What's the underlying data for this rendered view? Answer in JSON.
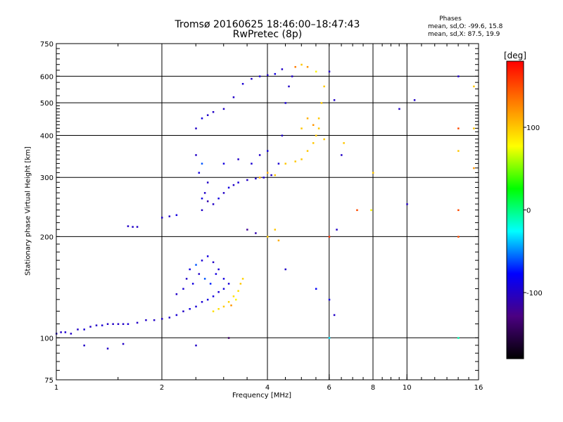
{
  "chart_data": {
    "type": "scatter",
    "title": "Tromsø 20160625 18:46:00–18:47:43",
    "subtitle": "RwPretec (8p)",
    "xlabel": "Frequency [MHz]",
    "ylabel": "Stationary phase Virtual Height [km]",
    "xscale": "log",
    "yscale": "log",
    "xlim": [
      1,
      16
    ],
    "ylim": [
      75,
      750
    ],
    "xticks": [
      1,
      2,
      4,
      6,
      8,
      10,
      16
    ],
    "yticks": [
      75,
      100,
      200,
      300,
      400,
      500,
      600,
      750
    ],
    "grid": true,
    "phase_stats": {
      "title": "Phases",
      "o_line": "mean, sd,O: -99.6, 15.8",
      "x_line": "mean, sd,X:  87.5, 19.9"
    },
    "colorbar": {
      "label": "[deg]",
      "ticks": [
        100,
        0,
        -100
      ],
      "range": [
        -180,
        180
      ],
      "colors": [
        "#000000",
        "#4b0082",
        "#0000ff",
        "#00ffff",
        "#00ff00",
        "#ffff00",
        "#ff8000",
        "#ff0000"
      ]
    },
    "series": [
      {
        "points": [
          [
            1.0,
            103,
            -100
          ],
          [
            1.03,
            104,
            -100
          ],
          [
            1.06,
            104,
            -95
          ],
          [
            1.1,
            103,
            -100
          ],
          [
            1.15,
            106,
            -100
          ],
          [
            1.2,
            106,
            -95
          ],
          [
            1.25,
            108,
            -100
          ],
          [
            1.3,
            109,
            -100
          ],
          [
            1.35,
            109,
            -95
          ],
          [
            1.4,
            110,
            -100
          ],
          [
            1.45,
            110,
            -100
          ],
          [
            1.5,
            110,
            -100
          ],
          [
            1.55,
            110,
            -100
          ],
          [
            1.6,
            110,
            -95
          ],
          [
            1.7,
            111,
            -100
          ],
          [
            1.8,
            113,
            -100
          ],
          [
            1.9,
            113,
            -100
          ],
          [
            2.0,
            114,
            -100
          ],
          [
            2.1,
            115,
            -100
          ],
          [
            2.2,
            117,
            -95
          ],
          [
            2.3,
            120,
            -100
          ],
          [
            2.4,
            122,
            -90
          ],
          [
            2.5,
            124,
            -95
          ],
          [
            2.6,
            128,
            -95
          ],
          [
            2.7,
            130,
            -90
          ],
          [
            2.8,
            133,
            -90
          ],
          [
            2.9,
            137,
            -95
          ],
          [
            3.0,
            140,
            -90
          ],
          [
            3.1,
            145,
            -95
          ],
          [
            2.2,
            135,
            -100
          ],
          [
            2.3,
            140,
            -95
          ],
          [
            2.35,
            150,
            -100
          ],
          [
            2.4,
            160,
            -90
          ],
          [
            2.5,
            165,
            -60
          ],
          [
            2.55,
            155,
            -100
          ],
          [
            2.6,
            170,
            -95
          ],
          [
            2.7,
            175,
            -90
          ],
          [
            2.8,
            168,
            -100
          ],
          [
            2.9,
            160,
            -95
          ],
          [
            3.0,
            150,
            -90
          ],
          [
            2.45,
            145,
            -90
          ],
          [
            2.65,
            150,
            -60
          ],
          [
            2.75,
            145,
            -70
          ],
          [
            2.85,
            155,
            -90
          ],
          [
            1.2,
            95,
            -100
          ],
          [
            1.4,
            93,
            -100
          ],
          [
            1.55,
            96,
            -100
          ],
          [
            2.5,
            95,
            -100
          ],
          [
            2.8,
            120,
            90
          ],
          [
            2.9,
            122,
            90
          ],
          [
            3.0,
            124,
            100
          ],
          [
            3.1,
            128,
            95
          ],
          [
            3.2,
            133,
            90
          ],
          [
            3.3,
            138,
            90
          ],
          [
            3.35,
            145,
            100
          ],
          [
            3.4,
            150,
            95
          ],
          [
            3.15,
            125,
            120
          ],
          [
            3.25,
            130,
            80
          ],
          [
            1.6,
            215,
            -100
          ],
          [
            1.65,
            214,
            -100
          ],
          [
            1.7,
            214,
            -100
          ],
          [
            2.0,
            228,
            -100
          ],
          [
            2.1,
            230,
            -100
          ],
          [
            2.2,
            232,
            -90
          ],
          [
            2.6,
            240,
            -100
          ],
          [
            2.6,
            260,
            -90
          ],
          [
            2.65,
            270,
            -100
          ],
          [
            2.7,
            255,
            -110
          ],
          [
            2.8,
            250,
            -100
          ],
          [
            2.9,
            260,
            -90
          ],
          [
            3.0,
            270,
            -100
          ],
          [
            3.1,
            280,
            -90
          ],
          [
            3.2,
            285,
            -100
          ],
          [
            3.3,
            290,
            -95
          ],
          [
            3.5,
            295,
            -100
          ],
          [
            3.7,
            298,
            -100
          ],
          [
            3.9,
            300,
            -95
          ],
          [
            4.1,
            305,
            -100
          ],
          [
            4.3,
            330,
            -95
          ],
          [
            4.4,
            400,
            -100
          ],
          [
            4.5,
            500,
            -95
          ],
          [
            4.6,
            560,
            -100
          ],
          [
            4.7,
            600,
            -100
          ],
          [
            2.5,
            420,
            -100
          ],
          [
            2.6,
            450,
            -90
          ],
          [
            2.7,
            460,
            -100
          ],
          [
            2.8,
            470,
            -100
          ],
          [
            3.0,
            480,
            -100
          ],
          [
            3.2,
            520,
            -100
          ],
          [
            3.4,
            570,
            -95
          ],
          [
            3.6,
            590,
            -100
          ],
          [
            3.8,
            600,
            -95
          ],
          [
            4.0,
            605,
            -100
          ],
          [
            4.2,
            610,
            -90
          ],
          [
            4.4,
            630,
            -100
          ],
          [
            2.5,
            350,
            -100
          ],
          [
            2.55,
            310,
            -90
          ],
          [
            2.6,
            330,
            -60
          ],
          [
            2.7,
            290,
            -100
          ],
          [
            3.0,
            330,
            -90
          ],
          [
            3.3,
            340,
            -100
          ],
          [
            3.6,
            330,
            -95
          ],
          [
            3.8,
            350,
            -100
          ],
          [
            4.0,
            360,
            -90
          ],
          [
            3.5,
            210,
            -120
          ],
          [
            3.7,
            205,
            -110
          ],
          [
            4.5,
            160,
            -100
          ],
          [
            5.5,
            140,
            -80
          ],
          [
            6.0,
            130,
            -90
          ],
          [
            6.2,
            117,
            -100
          ],
          [
            6.3,
            210,
            -100
          ],
          [
            6.5,
            350,
            -100
          ],
          [
            6.2,
            510,
            -100
          ],
          [
            9.5,
            480,
            -100
          ],
          [
            10.5,
            510,
            -100
          ],
          [
            10.0,
            250,
            -100
          ],
          [
            14.0,
            600,
            -100
          ],
          [
            15.5,
            320,
            120
          ],
          [
            15.5,
            420,
            100
          ],
          [
            15.5,
            560,
            100
          ],
          [
            4.5,
            330,
            100
          ],
          [
            4.8,
            335,
            100
          ],
          [
            5.0,
            340,
            100
          ],
          [
            5.2,
            360,
            100
          ],
          [
            5.4,
            380,
            100
          ],
          [
            5.5,
            400,
            100
          ],
          [
            5.6,
            450,
            100
          ],
          [
            5.7,
            500,
            100
          ],
          [
            5.8,
            560,
            100
          ],
          [
            5.0,
            420,
            100
          ],
          [
            5.2,
            450,
            110
          ],
          [
            5.4,
            430,
            120
          ],
          [
            5.6,
            420,
            100
          ],
          [
            5.8,
            390,
            100
          ],
          [
            3.8,
            300,
            110
          ],
          [
            4.0,
            310,
            110
          ],
          [
            4.2,
            305,
            100
          ],
          [
            4.0,
            200,
            100
          ],
          [
            4.2,
            210,
            100
          ],
          [
            4.3,
            195,
            110
          ],
          [
            4.8,
            640,
            130
          ],
          [
            5.0,
            650,
            100
          ],
          [
            5.2,
            640,
            120
          ],
          [
            5.5,
            620,
            80
          ],
          [
            6.0,
            620,
            -100
          ],
          [
            6.6,
            380,
            100
          ],
          [
            7.2,
            240,
            150
          ],
          [
            7.9,
            240,
            80
          ],
          [
            8.0,
            310,
            100
          ],
          [
            6.0,
            200,
            160
          ],
          [
            6.0,
            100,
            -30
          ],
          [
            3.1,
            100,
            -140
          ],
          [
            14.0,
            420,
            150
          ],
          [
            14.0,
            360,
            100
          ],
          [
            14.0,
            240,
            150
          ],
          [
            14.0,
            200,
            150
          ],
          [
            14.0,
            100,
            -10
          ]
        ]
      }
    ]
  }
}
